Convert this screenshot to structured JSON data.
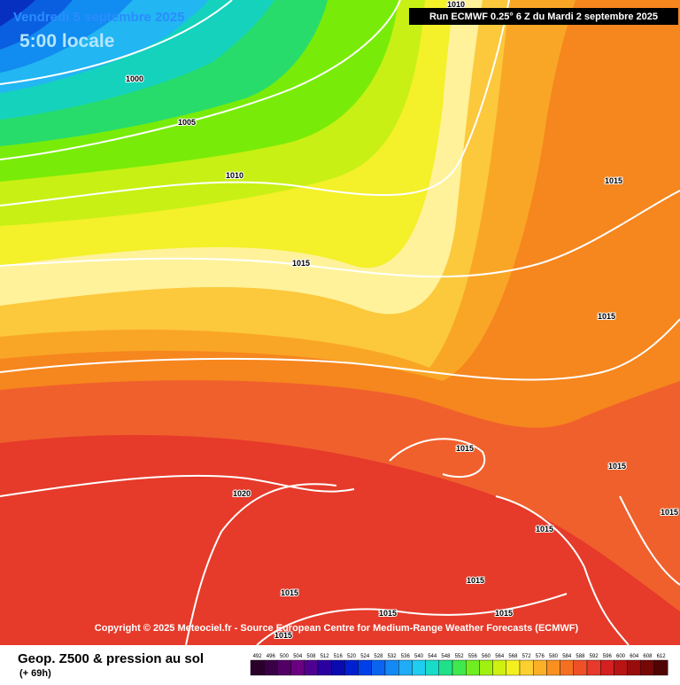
{
  "header": {
    "date": "Vendredi 5 septembre 2025",
    "time": "5:00 locale",
    "run": "Run ECMWF 0.25° 6 Z du Mardi 2 septembre 2025"
  },
  "map": {
    "isobar_labels": [
      1010,
      1000,
      1005,
      1010,
      1015,
      1015,
      1015,
      1015,
      1015,
      1015,
      1015,
      1020,
      1015,
      1015,
      1015,
      1015,
      1015
    ]
  },
  "copyright": "Copyright © 2025 Meteociel.fr - Source European Centre for Medium-Range Weather Forecasts (ECMWF)",
  "footer": {
    "title": "Geop. Z500 & pression au sol",
    "lead": "(+ 69h)"
  },
  "legend": {
    "values": [
      492,
      496,
      500,
      504,
      508,
      512,
      516,
      520,
      524,
      528,
      532,
      536,
      540,
      544,
      548,
      552,
      556,
      560,
      564,
      568,
      572,
      576,
      580,
      584,
      588,
      592,
      596,
      600,
      604,
      608,
      612
    ]
  }
}
